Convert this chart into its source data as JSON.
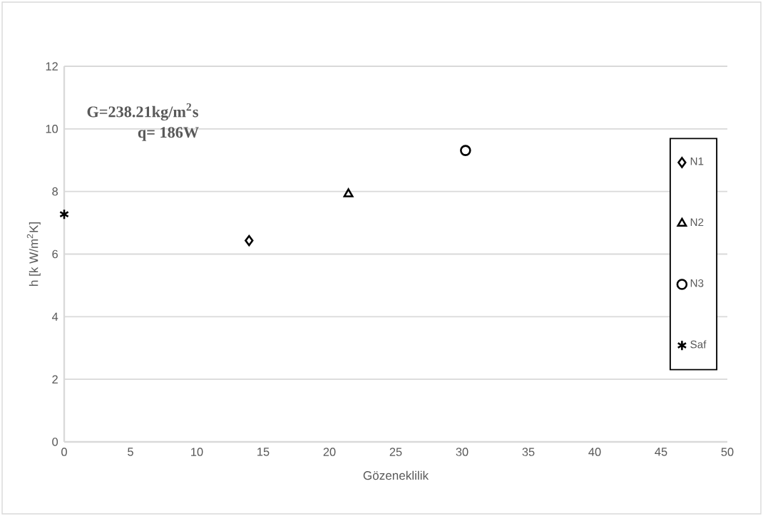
{
  "chart_data": {
    "type": "scatter",
    "xlabel": "Gözeneklilik",
    "ylabel": "h [k W/m$^{2}$K]",
    "xlim": [
      0,
      50
    ],
    "ylim": [
      0,
      12
    ],
    "xticks": [
      0,
      5,
      10,
      15,
      20,
      25,
      30,
      35,
      40,
      45,
      50
    ],
    "yticks": [
      0,
      2,
      4,
      6,
      8,
      10,
      12
    ],
    "grid": "y",
    "legend": "right",
    "annotations": [
      "G=238.21kg/m$^{2}$s",
      "q= 186W"
    ],
    "series": [
      {
        "name": "N1",
        "color": "#000000",
        "marker": "diamond",
        "x": [
          13.94
        ],
        "values": [
          6.43
        ]
      },
      {
        "name": "N2",
        "color": "#000000",
        "marker": "triangle",
        "x": [
          21.43
        ],
        "values": [
          7.92
        ]
      },
      {
        "name": "N3",
        "color": "#000000",
        "marker": "circle",
        "x": [
          30.26
        ],
        "values": [
          9.31
        ]
      },
      {
        "name": "Saf",
        "color": "#000000",
        "marker": "cross",
        "x": [
          0
        ],
        "values": [
          7.27
        ]
      }
    ]
  }
}
